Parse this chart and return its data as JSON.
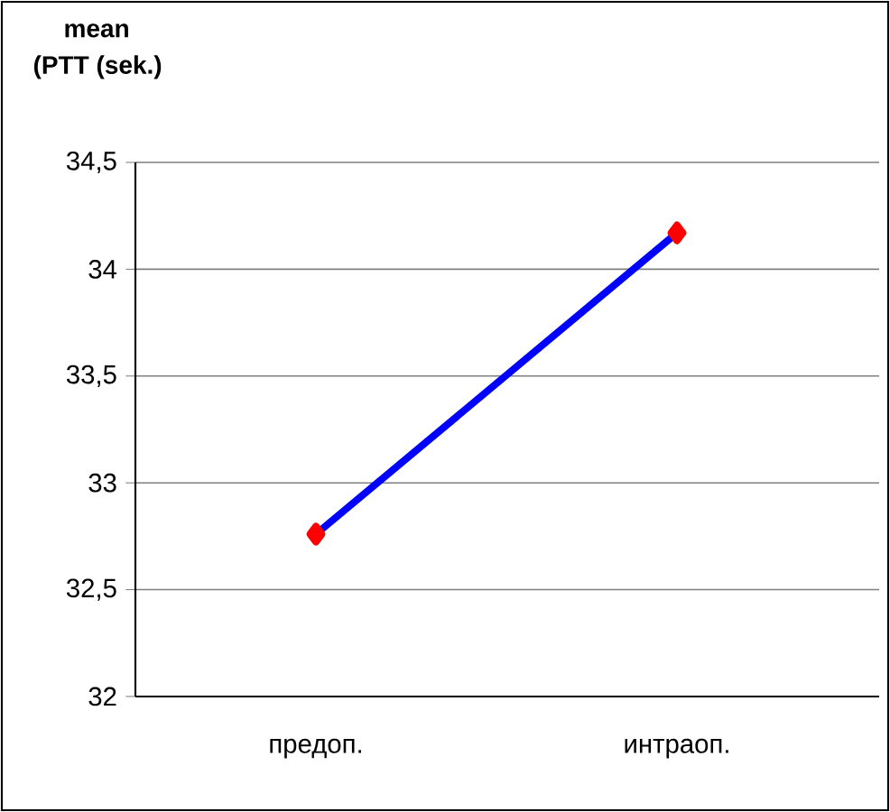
{
  "chart_data": {
    "type": "line",
    "title": "mean",
    "ylabel": "(PTT (sek.)",
    "categories": [
      "предоп.",
      "интраоп."
    ],
    "series": [
      {
        "color": "#0000ff",
        "values": [
          32.76,
          34.17
        ]
      }
    ],
    "ylim": [
      32,
      34.5
    ],
    "yticks": [
      {
        "value": 32,
        "label": "32"
      },
      {
        "value": 32.5,
        "label": "32,5"
      },
      {
        "value": 33,
        "label": "33"
      },
      {
        "value": 33.5,
        "label": "33,5"
      },
      {
        "value": 34,
        "label": "34"
      },
      {
        "value": 34.5,
        "label": "34,5"
      }
    ],
    "grid": "y",
    "marker": "diamond",
    "line_style": "solid"
  }
}
